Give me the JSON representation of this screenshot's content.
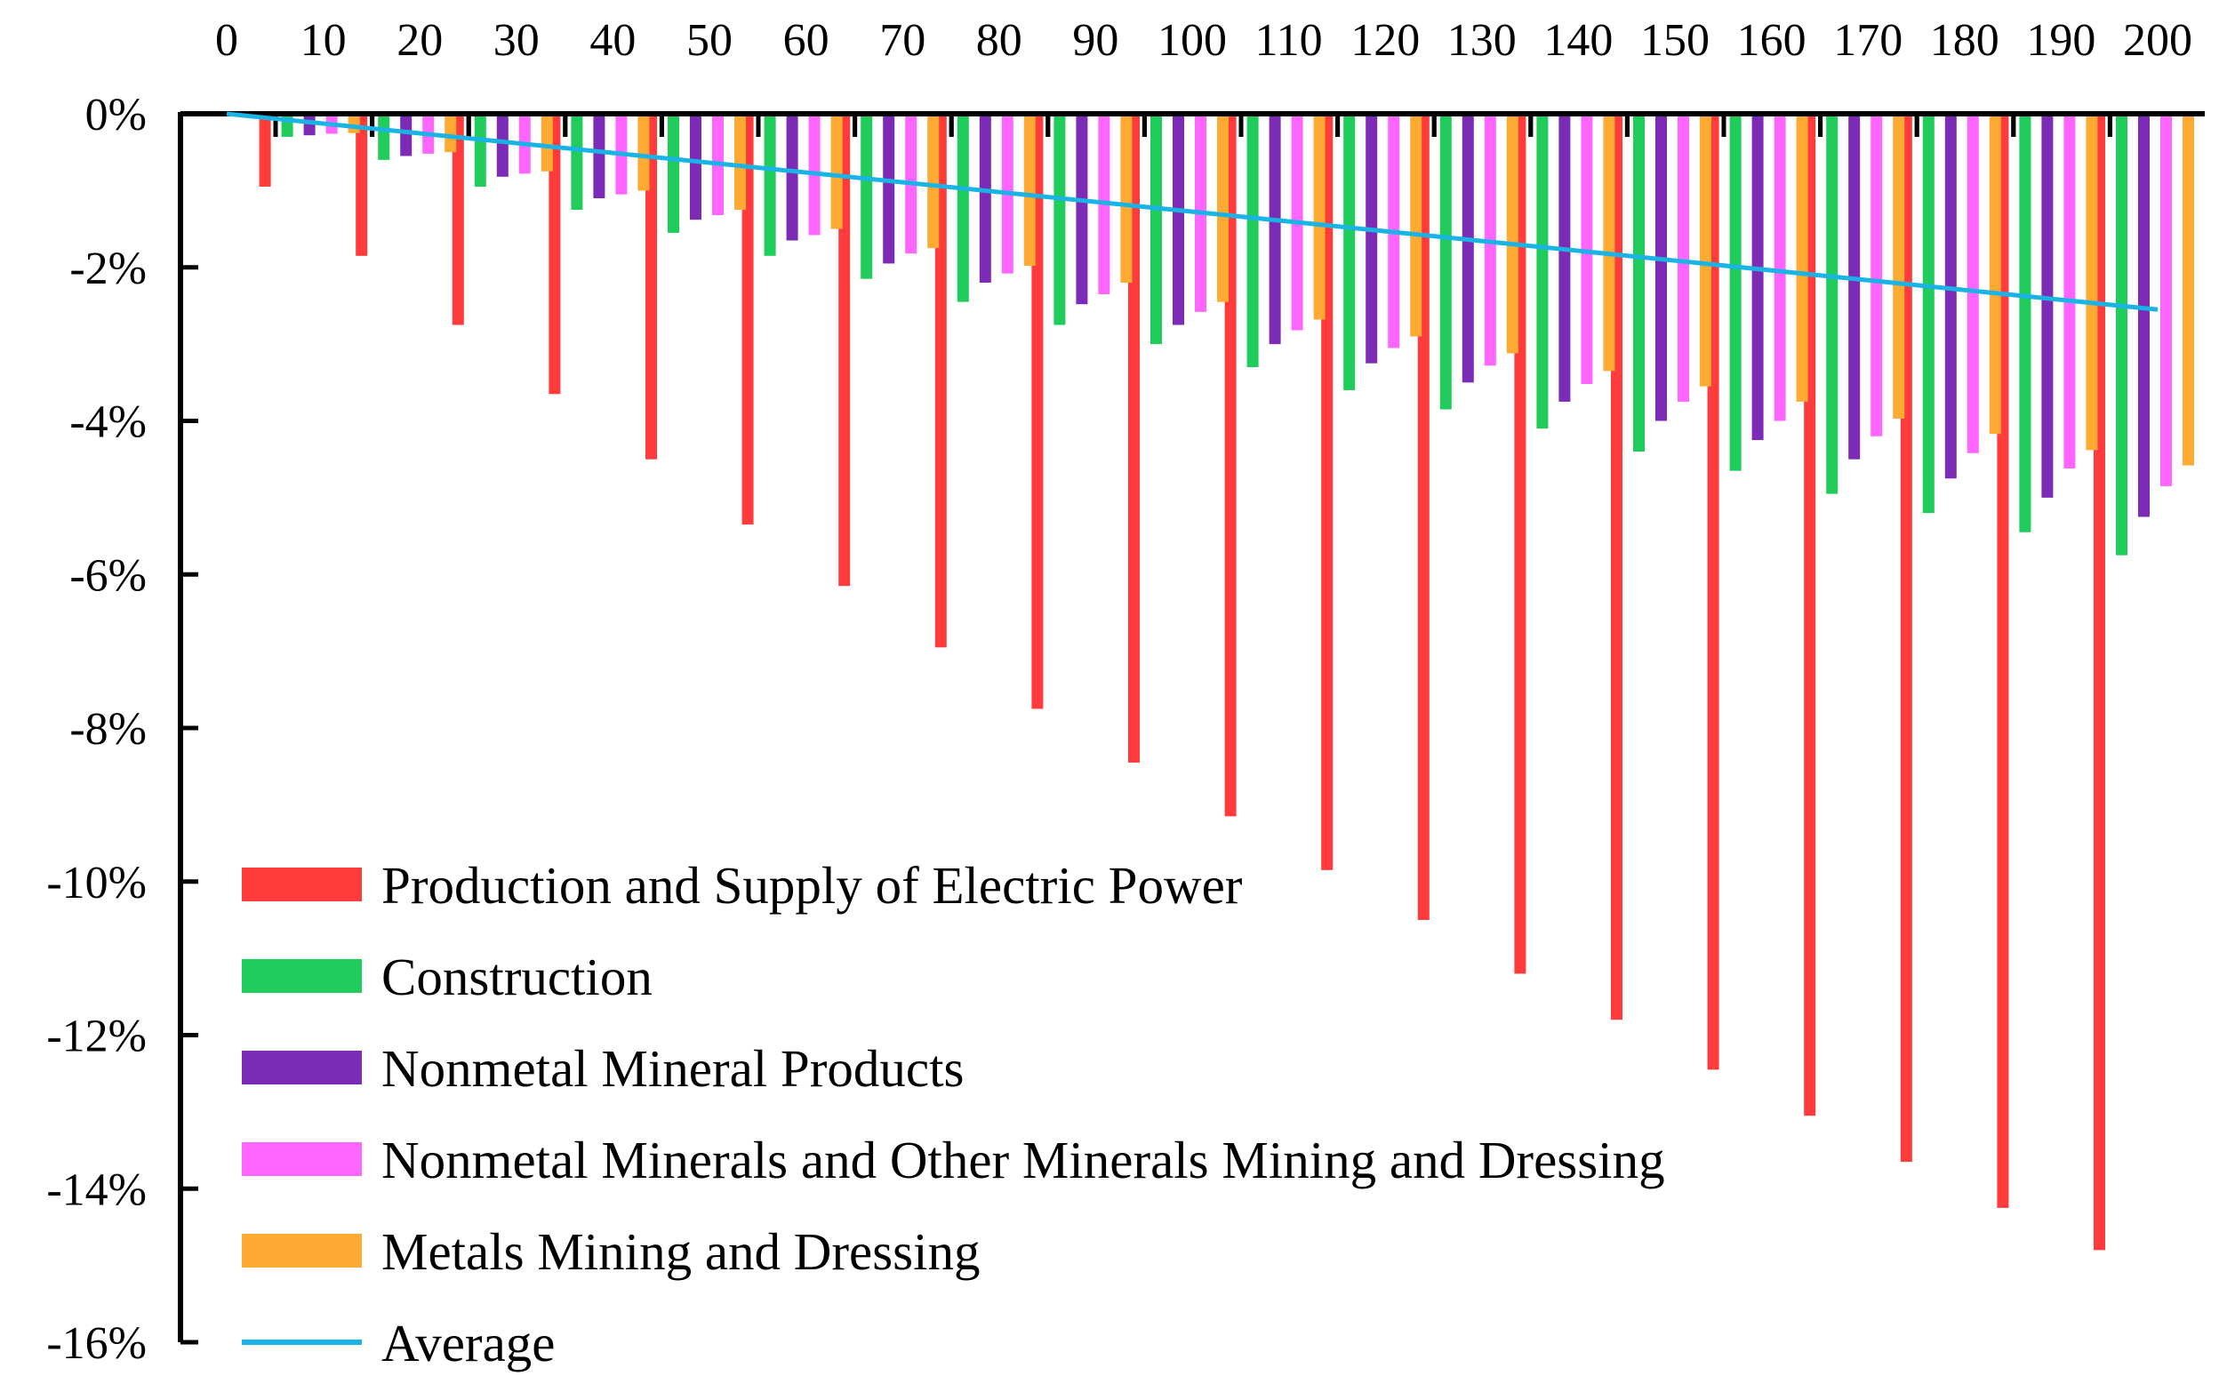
{
  "chart_data": {
    "type": "bar",
    "title": "",
    "xlabel": "",
    "ylabel": "",
    "x_axis_position": "top",
    "categories": [
      10,
      20,
      30,
      40,
      50,
      60,
      70,
      80,
      90,
      100,
      110,
      120,
      130,
      140,
      150,
      160,
      170,
      180,
      190,
      200
    ],
    "x_tick_labels": [
      "0",
      "10",
      "20",
      "30",
      "40",
      "50",
      "60",
      "70",
      "80",
      "90",
      "100",
      "110",
      "120",
      "130",
      "140",
      "150",
      "160",
      "170",
      "180",
      "190",
      "200"
    ],
    "x_range": [
      0,
      200
    ],
    "ylim": [
      -16,
      0
    ],
    "y_tick_values": [
      0,
      -2,
      -4,
      -6,
      -8,
      -10,
      -12,
      -14,
      -16
    ],
    "y_tick_labels": [
      "0%",
      "-2%",
      "-4%",
      "-6%",
      "-8%",
      "-10%",
      "-12%",
      "-14%",
      "-16%"
    ],
    "grid": false,
    "legend_position": "bottom-left",
    "series": [
      {
        "name": "Production and Supply of Electric Power",
        "color": "#ff3b3b",
        "values": [
          -0.95,
          -1.85,
          -2.75,
          -3.65,
          -4.5,
          -5.35,
          -6.15,
          -6.95,
          -7.75,
          -8.45,
          -9.15,
          -9.85,
          -10.5,
          -11.2,
          -11.8,
          -12.45,
          -13.05,
          -13.65,
          -14.25,
          -14.8
        ]
      },
      {
        "name": "Construction",
        "color": "#1fcc5c",
        "values": [
          -0.3,
          -0.6,
          -0.95,
          -1.25,
          -1.55,
          -1.85,
          -2.15,
          -2.45,
          -2.75,
          -3.0,
          -3.3,
          -3.6,
          -3.85,
          -4.1,
          -4.4,
          -4.65,
          -4.95,
          -5.2,
          -5.45,
          -5.75
        ]
      },
      {
        "name": "Nonmetal Mineral Products",
        "color": "#7b2bb5",
        "values": [
          -0.28,
          -0.55,
          -0.82,
          -1.1,
          -1.38,
          -1.65,
          -1.95,
          -2.2,
          -2.48,
          -2.75,
          -3.0,
          -3.25,
          -3.5,
          -3.75,
          -4.0,
          -4.25,
          -4.5,
          -4.75,
          -5.0,
          -5.25
        ]
      },
      {
        "name": "Nonmetal Minerals and Other Minerals Mining and Dressing",
        "color": "#ff66ff",
        "values": [
          -0.26,
          -0.52,
          -0.78,
          -1.05,
          -1.32,
          -1.58,
          -1.82,
          -2.08,
          -2.35,
          -2.58,
          -2.82,
          -3.05,
          -3.28,
          -3.52,
          -3.75,
          -4.0,
          -4.2,
          -4.42,
          -4.62,
          -4.85
        ]
      },
      {
        "name": "Metals Mining and Dressing",
        "color": "#ffaa33",
        "values": [
          -0.25,
          -0.5,
          -0.75,
          -1.0,
          -1.25,
          -1.5,
          -1.75,
          -1.98,
          -2.2,
          -2.45,
          -2.68,
          -2.9,
          -3.12,
          -3.35,
          -3.55,
          -3.75,
          -3.97,
          -4.17,
          -4.38,
          -4.58
        ]
      },
      {
        "name": "Average",
        "color": "#1ab3e6",
        "type": "line",
        "x": [
          0,
          200
        ],
        "values": [
          0,
          -2.55
        ]
      }
    ]
  }
}
